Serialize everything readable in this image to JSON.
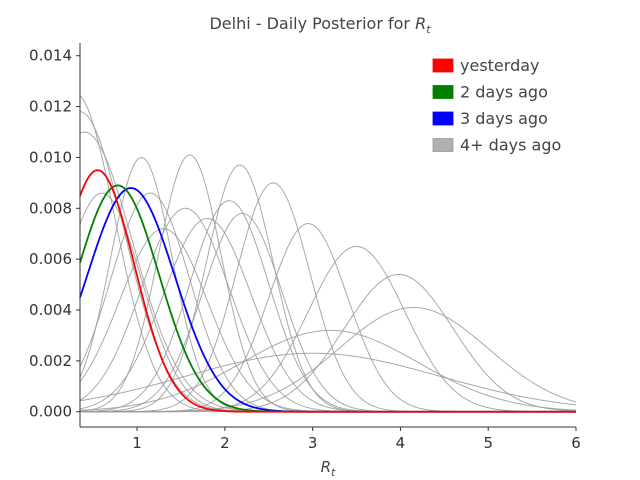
{
  "chart_data": {
    "type": "line",
    "title": "Delhi - Daily Posterior for ",
    "title_symbol": "R",
    "title_sub": "t",
    "xlabel_symbol": "R",
    "xlabel_sub": "t",
    "ylabel": "",
    "xlim": [
      0.35,
      6.0
    ],
    "ylim": [
      -0.0006,
      0.0145
    ],
    "xticks": [
      1,
      2,
      3,
      4,
      5,
      6
    ],
    "yticks": [
      0.0,
      0.002,
      0.004,
      0.006,
      0.008,
      0.01,
      0.012,
      0.014
    ],
    "ytick_labels": [
      "0.000",
      "0.002",
      "0.004",
      "0.006",
      "0.008",
      "0.010",
      "0.012",
      "0.014"
    ],
    "xtick_labels": [
      "1",
      "2",
      "3",
      "4",
      "5",
      "6"
    ],
    "grid": false,
    "legend_position": "top-right",
    "series": [
      {
        "name": "yesterday",
        "color": "#ff0000",
        "peak_x": 0.55,
        "peak_y": 0.0095,
        "width": 0.42,
        "highlight": true
      },
      {
        "name": "2 days ago",
        "color": "#008000",
        "peak_x": 0.78,
        "peak_y": 0.0089,
        "width": 0.47,
        "highlight": true
      },
      {
        "name": "3 days ago",
        "color": "#0000ff",
        "peak_x": 0.93,
        "peak_y": 0.0088,
        "width": 0.5,
        "highlight": true
      }
    ],
    "older_series_legend": {
      "name": "4+ days ago",
      "color": "#b0b0b0"
    },
    "older_series": [
      {
        "peak_x": 0.3,
        "peak_y": 0.0125,
        "width": 0.45
      },
      {
        "peak_x": 0.35,
        "peak_y": 0.0118,
        "width": 0.5
      },
      {
        "peak_x": 0.4,
        "peak_y": 0.011,
        "width": 0.55
      },
      {
        "peak_x": 0.6,
        "peak_y": 0.0086,
        "width": 0.45
      },
      {
        "peak_x": 1.05,
        "peak_y": 0.01,
        "width": 0.35
      },
      {
        "peak_x": 1.15,
        "peak_y": 0.0086,
        "width": 0.45
      },
      {
        "peak_x": 1.3,
        "peak_y": 0.0072,
        "width": 0.5
      },
      {
        "peak_x": 1.6,
        "peak_y": 0.0101,
        "width": 0.36
      },
      {
        "peak_x": 1.55,
        "peak_y": 0.008,
        "width": 0.5
      },
      {
        "peak_x": 1.8,
        "peak_y": 0.0076,
        "width": 0.5
      },
      {
        "peak_x": 2.05,
        "peak_y": 0.0083,
        "width": 0.45
      },
      {
        "peak_x": 2.2,
        "peak_y": 0.0078,
        "width": 0.45
      },
      {
        "peak_x": 2.17,
        "peak_y": 0.0097,
        "width": 0.38
      },
      {
        "peak_x": 2.55,
        "peak_y": 0.009,
        "width": 0.42
      },
      {
        "peak_x": 2.95,
        "peak_y": 0.0074,
        "width": 0.45
      },
      {
        "peak_x": 3.5,
        "peak_y": 0.0065,
        "width": 0.55
      },
      {
        "peak_x": 3.98,
        "peak_y": 0.0054,
        "width": 0.62
      },
      {
        "peak_x": 4.15,
        "peak_y": 0.0041,
        "width": 0.85
      },
      {
        "peak_x": 3.2,
        "peak_y": 0.0032,
        "width": 1.0
      },
      {
        "peak_x": 3.0,
        "peak_y": 0.0023,
        "width": 1.45
      }
    ]
  }
}
